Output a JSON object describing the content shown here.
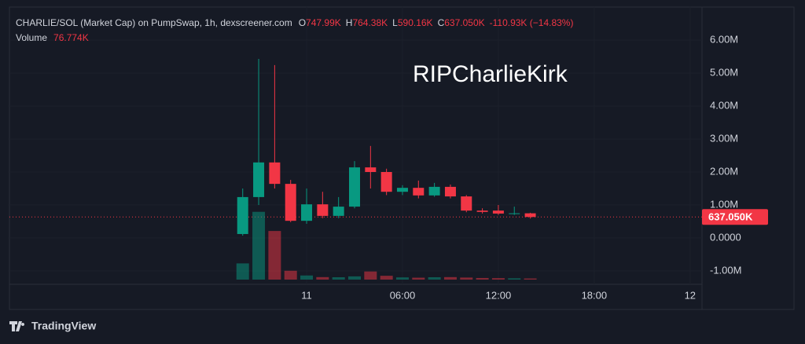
{
  "header": {
    "title": "CHARLIE/SOL (Market Cap) on PumpSwap, 1h, dexscreener.com",
    "fields": [
      {
        "key": "O",
        "value": "747.99K"
      },
      {
        "key": "H",
        "value": "764.38K"
      },
      {
        "key": "L",
        "value": "590.16K"
      },
      {
        "key": "C",
        "value": "637.050K"
      }
    ],
    "change": "-110.93K (−14.83%)",
    "volume_key": "Volume",
    "volume_value": "76.774K",
    "brand": "TradingView"
  },
  "chart_data": {
    "type": "candlestick",
    "annotation": "RIPCharlieKirk",
    "categories": [
      null,
      null,
      null,
      null,
      null,
      null,
      null,
      null,
      null,
      null,
      null,
      null,
      null,
      null,
      null,
      null,
      null,
      null,
      null
    ],
    "open": [
      120000,
      1240000,
      2290000,
      1640000,
      520000,
      1020000,
      670000,
      950000,
      2140000,
      2000000,
      1400000,
      1520000,
      1290000,
      1550000,
      1260000,
      830000,
      830000,
      740000,
      747990
    ],
    "high": [
      1500000,
      5430000,
      5240000,
      1760000,
      1500000,
      1400000,
      1240000,
      2330000,
      2790000,
      2100000,
      1600000,
      1740000,
      1670000,
      1620000,
      1300000,
      900000,
      1000000,
      950000,
      764380
    ],
    "low": [
      70000,
      1000000,
      1500000,
      480000,
      430000,
      600000,
      600000,
      900000,
      1500000,
      1300000,
      1300000,
      1200000,
      1250000,
      1200000,
      780000,
      740000,
      700000,
      700000,
      590160
    ],
    "close": [
      1240000,
      2290000,
      1640000,
      520000,
      1020000,
      670000,
      950000,
      2140000,
      2000000,
      1400000,
      1520000,
      1290000,
      1550000,
      1260000,
      830000,
      790000,
      740000,
      747990,
      637050
    ],
    "close_labels": {
      "18": "637.050K"
    },
    "volume": [
      1100000,
      4600000,
      3300000,
      600000,
      280000,
      170000,
      160000,
      220000,
      550000,
      260000,
      150000,
      130000,
      160000,
      170000,
      140000,
      110000,
      100000,
      90000,
      76774
    ],
    "volume_ylim": [
      0,
      18500000
    ],
    "up_color": "#089981",
    "down_color": "#f23645",
    "xlim": [
      -14.6,
      28.6
    ],
    "xticks": [
      {
        "value": 4,
        "label": "11"
      },
      {
        "value": 10,
        "label": "06:00"
      },
      {
        "value": 16,
        "label": "12:00"
      },
      {
        "value": 22,
        "label": "18:00"
      },
      {
        "value": 28,
        "label": "12"
      }
    ],
    "ylim": [
      -1400000,
      7000000
    ],
    "yticks": [
      {
        "value": -1000000,
        "label": "-1.00M"
      },
      {
        "value": 0,
        "label": "0.0000"
      },
      {
        "value": 1000000,
        "label": "1.00M"
      },
      {
        "value": 2000000,
        "label": "2.00M"
      },
      {
        "value": 3000000,
        "label": "3.00M"
      },
      {
        "value": 4000000,
        "label": "4.00M"
      },
      {
        "value": 5000000,
        "label": "5.00M"
      },
      {
        "value": 6000000,
        "label": "6.00M"
      }
    ],
    "grid": true
  }
}
